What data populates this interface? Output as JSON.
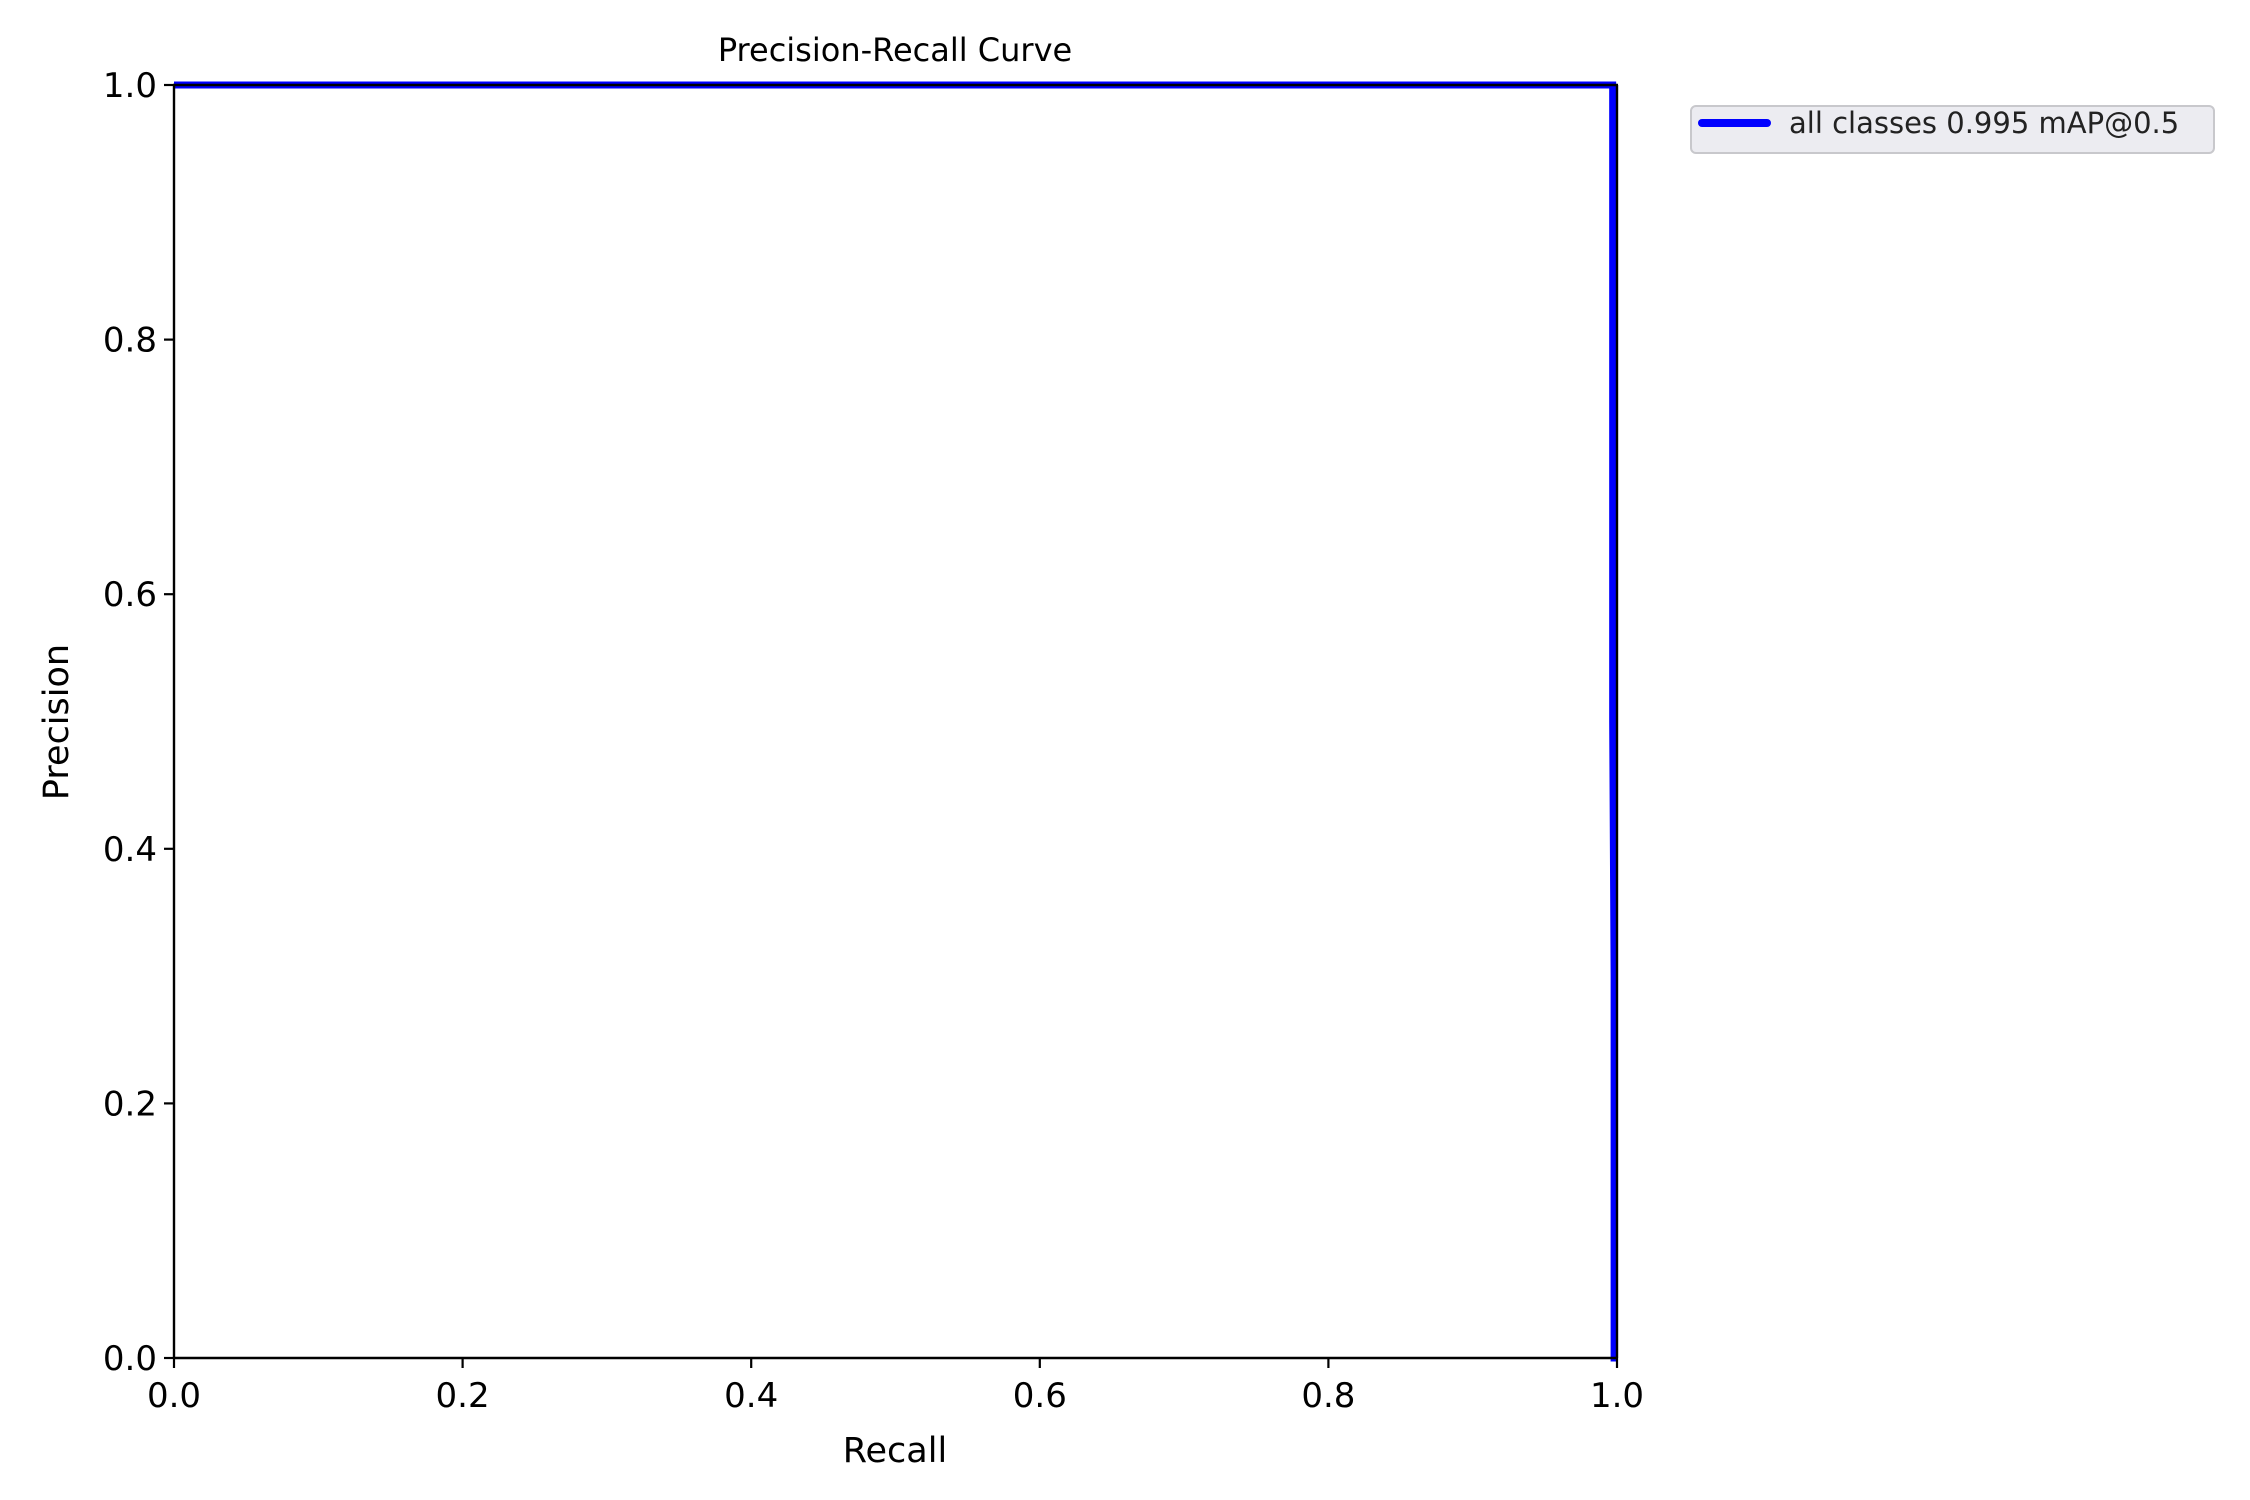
{
  "chart_data": {
    "type": "line",
    "title": "Precision-Recall Curve",
    "xlabel": "Recall",
    "ylabel": "Precision",
    "xlim": [
      0.0,
      1.0
    ],
    "ylim": [
      0.0,
      1.0
    ],
    "xticks": [
      "0.0",
      "0.2",
      "0.4",
      "0.6",
      "0.8",
      "1.0"
    ],
    "yticks": [
      "0.0",
      "0.2",
      "0.4",
      "0.6",
      "0.8",
      "1.0"
    ],
    "grid": false,
    "legend_position": "outside-top-right",
    "series": [
      {
        "name": "all classes 0.995 mAP@0.5",
        "color": "#0000ff",
        "x": [
          0.0,
          0.997,
          0.997,
          0.998,
          0.998,
          1.0
        ],
        "y": [
          1.0,
          1.0,
          0.5,
          0.3,
          0.0,
          0.0
        ]
      }
    ]
  }
}
